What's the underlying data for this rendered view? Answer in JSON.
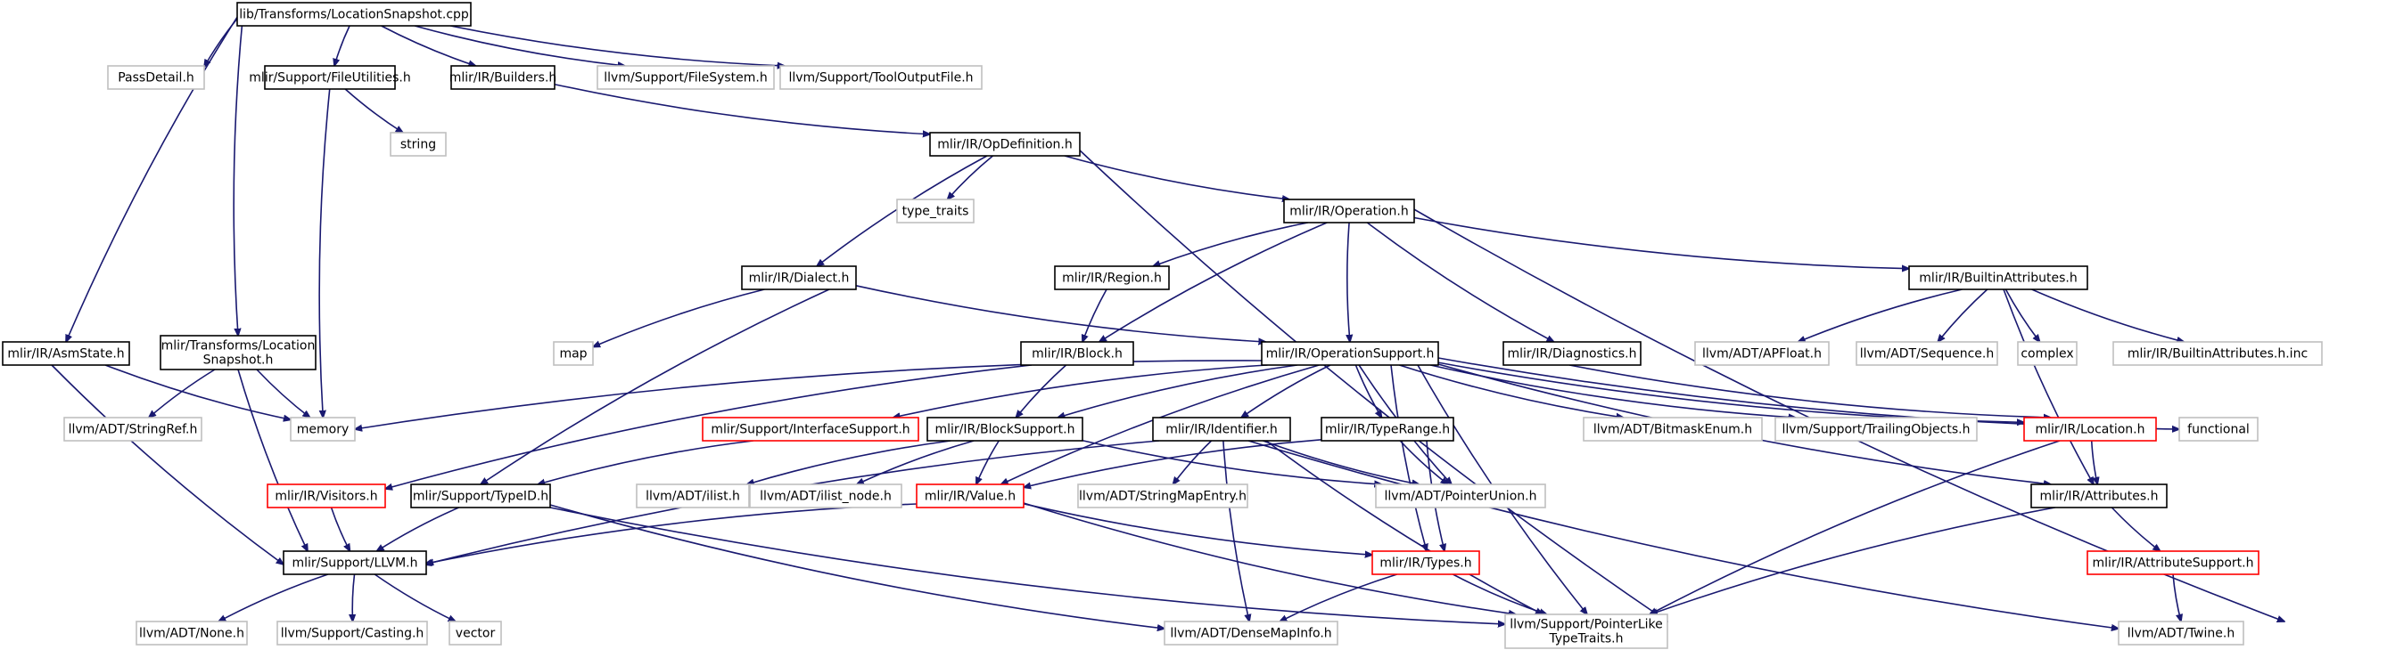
{
  "colors": {
    "edge": "#191970",
    "root_fill": "#bfbfbf",
    "root_border": "#000000",
    "normal_border": "#000000",
    "truncated_border": "#ff0000",
    "external_border": "#bfbfbf",
    "external_text": "#666666",
    "text": "#000000"
  },
  "nodes": [
    {
      "id": "root",
      "lines": [
        "lib/Transforms/LocationSnapshot.cpp"
      ],
      "kind": "root"
    },
    {
      "id": "passdetail",
      "lines": [
        "PassDetail.h"
      ],
      "kind": "external"
    },
    {
      "id": "fileutil",
      "lines": [
        "mlir/Support/FileUtilities.h"
      ],
      "kind": "normal"
    },
    {
      "id": "builders",
      "lines": [
        "mlir/IR/Builders.h"
      ],
      "kind": "normal"
    },
    {
      "id": "filesystem",
      "lines": [
        "llvm/Support/FileSystem.h"
      ],
      "kind": "external"
    },
    {
      "id": "tooloutput",
      "lines": [
        "llvm/Support/ToolOutputFile.h"
      ],
      "kind": "external"
    },
    {
      "id": "string",
      "lines": [
        "string"
      ],
      "kind": "external"
    },
    {
      "id": "opdef",
      "lines": [
        "mlir/IR/OpDefinition.h"
      ],
      "kind": "normal"
    },
    {
      "id": "typetraits",
      "lines": [
        "type_traits"
      ],
      "kind": "external"
    },
    {
      "id": "operation",
      "lines": [
        "mlir/IR/Operation.h"
      ],
      "kind": "normal"
    },
    {
      "id": "dialect",
      "lines": [
        "mlir/IR/Dialect.h"
      ],
      "kind": "normal"
    },
    {
      "id": "region",
      "lines": [
        "mlir/IR/Region.h"
      ],
      "kind": "normal"
    },
    {
      "id": "builtinattr",
      "lines": [
        "mlir/IR/BuiltinAttributes.h"
      ],
      "kind": "normal"
    },
    {
      "id": "asmstate",
      "lines": [
        "mlir/IR/AsmState.h"
      ],
      "kind": "normal"
    },
    {
      "id": "locsnap",
      "lines": [
        "mlir/Transforms/Location",
        "Snapshot.h"
      ],
      "kind": "normal"
    },
    {
      "id": "map",
      "lines": [
        "map"
      ],
      "kind": "external"
    },
    {
      "id": "block",
      "lines": [
        "mlir/IR/Block.h"
      ],
      "kind": "normal"
    },
    {
      "id": "opsupport",
      "lines": [
        "mlir/IR/OperationSupport.h"
      ],
      "kind": "normal"
    },
    {
      "id": "diagnostics",
      "lines": [
        "mlir/IR/Diagnostics.h"
      ],
      "kind": "normal"
    },
    {
      "id": "apfloat",
      "lines": [
        "llvm/ADT/APFloat.h"
      ],
      "kind": "external"
    },
    {
      "id": "sequence",
      "lines": [
        "llvm/ADT/Sequence.h"
      ],
      "kind": "external"
    },
    {
      "id": "complex",
      "lines": [
        "complex"
      ],
      "kind": "external"
    },
    {
      "id": "builtinattrinc",
      "lines": [
        "mlir/IR/BuiltinAttributes.h.inc"
      ],
      "kind": "external"
    },
    {
      "id": "stringref",
      "lines": [
        "llvm/ADT/StringRef.h"
      ],
      "kind": "external"
    },
    {
      "id": "memory",
      "lines": [
        "memory"
      ],
      "kind": "external"
    },
    {
      "id": "ifacesupport",
      "lines": [
        "mlir/Support/InterfaceSupport.h"
      ],
      "kind": "truncated"
    },
    {
      "id": "blocksupport",
      "lines": [
        "mlir/IR/BlockSupport.h"
      ],
      "kind": "normal"
    },
    {
      "id": "identifier",
      "lines": [
        "mlir/IR/Identifier.h"
      ],
      "kind": "normal"
    },
    {
      "id": "typerange",
      "lines": [
        "mlir/IR/TypeRange.h"
      ],
      "kind": "normal"
    },
    {
      "id": "bitmask",
      "lines": [
        "llvm/ADT/BitmaskEnum.h"
      ],
      "kind": "external"
    },
    {
      "id": "trailing",
      "lines": [
        "llvm/Support/TrailingObjects.h"
      ],
      "kind": "external"
    },
    {
      "id": "location",
      "lines": [
        "mlir/IR/Location.h"
      ],
      "kind": "truncated"
    },
    {
      "id": "functional",
      "lines": [
        "functional"
      ],
      "kind": "external"
    },
    {
      "id": "visitors",
      "lines": [
        "mlir/IR/Visitors.h"
      ],
      "kind": "truncated"
    },
    {
      "id": "typeid",
      "lines": [
        "mlir/Support/TypeID.h"
      ],
      "kind": "normal"
    },
    {
      "id": "ilist",
      "lines": [
        "llvm/ADT/ilist.h"
      ],
      "kind": "external"
    },
    {
      "id": "ilistnode",
      "lines": [
        "llvm/ADT/ilist_node.h"
      ],
      "kind": "external"
    },
    {
      "id": "value",
      "lines": [
        "mlir/IR/Value.h"
      ],
      "kind": "truncated"
    },
    {
      "id": "stringmapentry",
      "lines": [
        "llvm/ADT/StringMapEntry.h"
      ],
      "kind": "external"
    },
    {
      "id": "pointerunion",
      "lines": [
        "llvm/ADT/PointerUnion.h"
      ],
      "kind": "external"
    },
    {
      "id": "attributes",
      "lines": [
        "mlir/IR/Attributes.h"
      ],
      "kind": "normal"
    },
    {
      "id": "llvmh",
      "lines": [
        "mlir/Support/LLVM.h"
      ],
      "kind": "normal"
    },
    {
      "id": "types",
      "lines": [
        "mlir/IR/Types.h"
      ],
      "kind": "truncated"
    },
    {
      "id": "attrsupport",
      "lines": [
        "mlir/IR/AttributeSupport.h"
      ],
      "kind": "truncated"
    },
    {
      "id": "none",
      "lines": [
        "llvm/ADT/None.h"
      ],
      "kind": "external"
    },
    {
      "id": "casting",
      "lines": [
        "llvm/Support/Casting.h"
      ],
      "kind": "external"
    },
    {
      "id": "vector",
      "lines": [
        "vector"
      ],
      "kind": "external"
    },
    {
      "id": "densemapinfo",
      "lines": [
        "llvm/ADT/DenseMapInfo.h"
      ],
      "kind": "external"
    },
    {
      "id": "pointerlike",
      "lines": [
        "llvm/Support/PointerLike",
        "TypeTraits.h"
      ],
      "kind": "external"
    },
    {
      "id": "twine",
      "lines": [
        "llvm/ADT/Twine.h"
      ],
      "kind": "external"
    }
  ],
  "edges": [
    [
      "root",
      "passdetail"
    ],
    [
      "root",
      "fileutil"
    ],
    [
      "root",
      "builders"
    ],
    [
      "root",
      "filesystem"
    ],
    [
      "root",
      "tooloutput"
    ],
    [
      "root",
      "asmstate"
    ],
    [
      "root",
      "locsnap"
    ],
    [
      "fileutil",
      "string"
    ],
    [
      "fileutil",
      "memory"
    ],
    [
      "builders",
      "opdef"
    ],
    [
      "opdef",
      "typetraits"
    ],
    [
      "opdef",
      "operation"
    ],
    [
      "opdef",
      "dialect"
    ],
    [
      "opdef",
      "pointerlike"
    ],
    [
      "operation",
      "region"
    ],
    [
      "operation",
      "block"
    ],
    [
      "operation",
      "opsupport"
    ],
    [
      "operation",
      "diagnostics"
    ],
    [
      "operation",
      "builtinattr"
    ],
    [
      "operation",
      "twine"
    ],
    [
      "dialect",
      "map"
    ],
    [
      "dialect",
      "opsupport"
    ],
    [
      "dialect",
      "typeid"
    ],
    [
      "region",
      "block"
    ],
    [
      "builtinattr",
      "apfloat"
    ],
    [
      "builtinattr",
      "sequence"
    ],
    [
      "builtinattr",
      "complex"
    ],
    [
      "builtinattr",
      "builtinattrinc"
    ],
    [
      "builtinattr",
      "attributes"
    ],
    [
      "asmstate",
      "memory"
    ],
    [
      "asmstate",
      "llvmh"
    ],
    [
      "locsnap",
      "stringref"
    ],
    [
      "locsnap",
      "memory"
    ],
    [
      "locsnap",
      "llvmh"
    ],
    [
      "block",
      "blocksupport"
    ],
    [
      "block",
      "visitors"
    ],
    [
      "opsupport",
      "memory"
    ],
    [
      "opsupport",
      "ifacesupport"
    ],
    [
      "opsupport",
      "blocksupport"
    ],
    [
      "opsupport",
      "identifier"
    ],
    [
      "opsupport",
      "typerange"
    ],
    [
      "opsupport",
      "bitmask"
    ],
    [
      "opsupport",
      "trailing"
    ],
    [
      "opsupport",
      "location"
    ],
    [
      "opsupport",
      "value"
    ],
    [
      "opsupport",
      "pointerunion"
    ],
    [
      "opsupport",
      "types"
    ],
    [
      "opsupport",
      "pointerlike"
    ],
    [
      "opsupport",
      "functional"
    ],
    [
      "opsupport",
      "attributes"
    ],
    [
      "diagnostics",
      "location"
    ],
    [
      "ifacesupport",
      "typeid"
    ],
    [
      "blocksupport",
      "ilist"
    ],
    [
      "blocksupport",
      "ilistnode"
    ],
    [
      "blocksupport",
      "value"
    ],
    [
      "blocksupport",
      "pointerunion"
    ],
    [
      "identifier",
      "stringmapentry"
    ],
    [
      "identifier",
      "pointerunion"
    ],
    [
      "identifier",
      "densemapinfo"
    ],
    [
      "identifier",
      "pointerlike"
    ],
    [
      "identifier",
      "twine"
    ],
    [
      "identifier",
      "llvmh"
    ],
    [
      "typerange",
      "pointerunion"
    ],
    [
      "typerange",
      "value"
    ],
    [
      "typerange",
      "types"
    ],
    [
      "location",
      "attributes"
    ],
    [
      "location",
      "pointerlike"
    ],
    [
      "visitors",
      "llvmh"
    ],
    [
      "typeid",
      "llvmh"
    ],
    [
      "typeid",
      "densemapinfo"
    ],
    [
      "typeid",
      "pointerlike"
    ],
    [
      "value",
      "llvmh"
    ],
    [
      "value",
      "types"
    ],
    [
      "value",
      "pointerlike"
    ],
    [
      "attributes",
      "attrsupport"
    ],
    [
      "attributes",
      "pointerlike"
    ],
    [
      "llvmh",
      "none"
    ],
    [
      "llvmh",
      "casting"
    ],
    [
      "llvmh",
      "vector"
    ],
    [
      "types",
      "densemapinfo"
    ],
    [
      "types",
      "pointerlike"
    ],
    [
      "attrsupport",
      "twine"
    ]
  ]
}
